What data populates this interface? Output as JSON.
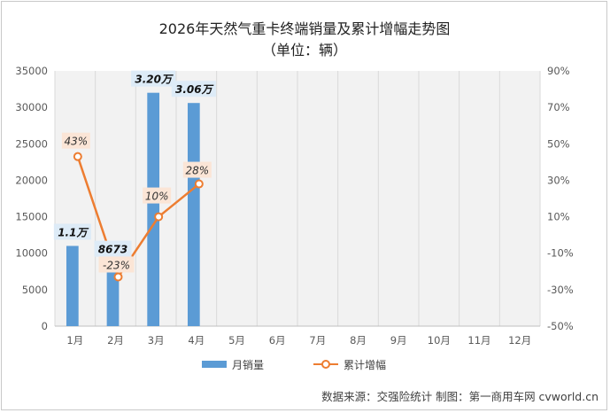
{
  "chart_data": {
    "type": "bar+line",
    "title": "2026年天然气重卡终端销量及累计增幅走势图",
    "subtitle": "（单位：辆）",
    "categories": [
      "1月",
      "2月",
      "3月",
      "4月",
      "5月",
      "6月",
      "7月",
      "8月",
      "9月",
      "10月",
      "11月",
      "12月"
    ],
    "left_axis": {
      "min": 0,
      "max": 35000,
      "step": 5000,
      "ticks": [
        "0",
        "5000",
        "10000",
        "15000",
        "20000",
        "25000",
        "30000",
        "35000"
      ]
    },
    "right_axis": {
      "min": -50,
      "max": 90,
      "step": 20,
      "ticks": [
        "-50%",
        "-30%",
        "-10%",
        "10%",
        "30%",
        "50%",
        "70%",
        "90%"
      ]
    },
    "series": [
      {
        "name": "月销量",
        "kind": "bar",
        "axis": "left",
        "color": "#5b9bd5",
        "values": [
          11000,
          8673,
          32000,
          30600,
          null,
          null,
          null,
          null,
          null,
          null,
          null,
          null
        ],
        "labels": [
          "1.1万",
          "8673",
          "3.20万",
          "3.06万"
        ]
      },
      {
        "name": "累计增幅",
        "kind": "line",
        "axis": "right",
        "color": "#ed7d31",
        "values": [
          43,
          -23,
          10,
          28,
          null,
          null,
          null,
          null,
          null,
          null,
          null,
          null
        ],
        "labels": [
          "43%",
          "-23%",
          "10%",
          "28%"
        ]
      }
    ],
    "grid": "vertical",
    "legend_position": "bottom"
  },
  "source": "数据来源：交强险统计  制图：第一商用车网 cvworld.cn"
}
